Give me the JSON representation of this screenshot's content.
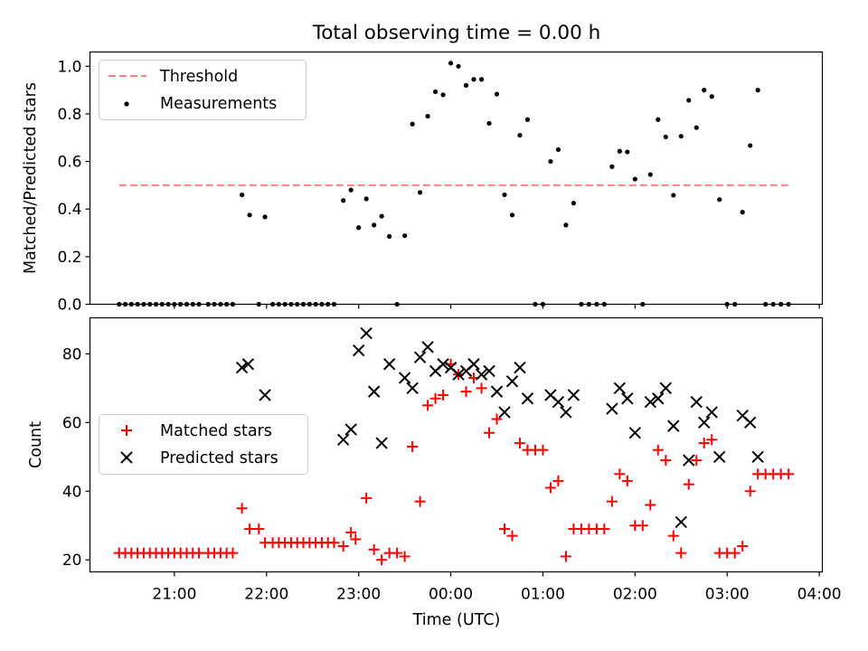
{
  "colors": {
    "threshold": "#ff7f7f",
    "measurement": "#000000",
    "matched": "#ff0000",
    "predicted": "#000000"
  },
  "chart_data": [
    {
      "type": "scatter",
      "title": "Total observing time = 0.00 h",
      "xlabel": "",
      "ylabel": "Matched/Predicted stars",
      "ylim": [
        0,
        1.06
      ],
      "yticks": [
        "0.0",
        "0.2",
        "0.4",
        "0.6",
        "0.8",
        "1.0"
      ],
      "ytick_values": [
        0,
        0.2,
        0.4,
        0.6,
        0.8,
        1.0
      ],
      "legend_location": "upper-left",
      "legend": [
        "Threshold",
        "Measurements"
      ],
      "threshold": {
        "name": "Threshold",
        "y": 0.5,
        "x_start": "20:24",
        "x_end": "03:42"
      },
      "series": [
        {
          "name": "Measurements",
          "points": [
            [
              "20:24",
              0
            ],
            [
              "20:28",
              0
            ],
            [
              "20:32",
              0
            ],
            [
              "20:36",
              0
            ],
            [
              "20:40",
              0
            ],
            [
              "20:44",
              0
            ],
            [
              "20:48",
              0
            ],
            [
              "20:52",
              0
            ],
            [
              "20:56",
              0
            ],
            [
              "21:00",
              0
            ],
            [
              "21:04",
              0
            ],
            [
              "21:08",
              0
            ],
            [
              "21:12",
              0
            ],
            [
              "21:16",
              0
            ],
            [
              "21:22",
              0
            ],
            [
              "21:26",
              0
            ],
            [
              "21:30",
              0
            ],
            [
              "21:34",
              0
            ],
            [
              "21:38",
              0
            ],
            [
              "21:44",
              0.46
            ],
            [
              "21:49",
              0.375
            ],
            [
              "21:55",
              0
            ],
            [
              "21:59",
              0.367
            ],
            [
              "22:04",
              0
            ],
            [
              "22:08",
              0
            ],
            [
              "22:12",
              0
            ],
            [
              "22:16",
              0
            ],
            [
              "22:20",
              0
            ],
            [
              "22:24",
              0
            ],
            [
              "22:28",
              0
            ],
            [
              "22:32",
              0
            ],
            [
              "22:36",
              0
            ],
            [
              "22:40",
              0
            ],
            [
              "22:44",
              0
            ],
            [
              "22:50",
              0.436
            ],
            [
              "22:55",
              0.48
            ],
            [
              "23:00",
              0.322
            ],
            [
              "23:05",
              0.443
            ],
            [
              "23:10",
              0.333
            ],
            [
              "23:15",
              0.37
            ],
            [
              "23:20",
              0.285
            ],
            [
              "23:25",
              0
            ],
            [
              "23:30",
              0.288
            ],
            [
              "23:35",
              0.757
            ],
            [
              "23:40",
              0.47
            ],
            [
              "23:45",
              0.79
            ],
            [
              "23:50",
              0.893
            ],
            [
              "23:55",
              0.88
            ],
            [
              "00:00",
              1.013
            ],
            [
              "00:05",
              1.0
            ],
            [
              "00:10",
              0.92
            ],
            [
              "00:15",
              0.945
            ],
            [
              "00:20",
              0.945
            ],
            [
              "00:25",
              0.76
            ],
            [
              "00:30",
              0.883
            ],
            [
              "00:35",
              0.46
            ],
            [
              "00:40",
              0.375
            ],
            [
              "00:45",
              0.71
            ],
            [
              "00:50",
              0.776
            ],
            [
              "00:55",
              0
            ],
            [
              "01:00",
              0
            ],
            [
              "01:05",
              0.6
            ],
            [
              "01:10",
              0.65
            ],
            [
              "01:15",
              0.333
            ],
            [
              "01:20",
              0.425
            ],
            [
              "01:25",
              0
            ],
            [
              "01:30",
              0
            ],
            [
              "01:35",
              0
            ],
            [
              "01:40",
              0
            ],
            [
              "01:45",
              0.578
            ],
            [
              "01:50",
              0.643
            ],
            [
              "01:55",
              0.64
            ],
            [
              "02:00",
              0.526
            ],
            [
              "02:05",
              0
            ],
            [
              "02:10",
              0.545
            ],
            [
              "02:15",
              0.776
            ],
            [
              "02:20",
              0.703
            ],
            [
              "02:25",
              0.458
            ],
            [
              "02:30",
              0.706
            ],
            [
              "02:35",
              0.857
            ],
            [
              "02:40",
              0.742
            ],
            [
              "02:45",
              0.9
            ],
            [
              "02:50",
              0.873
            ],
            [
              "02:55",
              0.44
            ],
            [
              "03:00",
              0
            ],
            [
              "03:05",
              0
            ],
            [
              "03:10",
              0.387
            ],
            [
              "03:15",
              0.667
            ],
            [
              "03:20",
              0.9
            ],
            [
              "03:25",
              0
            ],
            [
              "03:30",
              0
            ],
            [
              "03:35",
              0
            ],
            [
              "03:40",
              0
            ]
          ]
        }
      ]
    },
    {
      "type": "scatter",
      "title": "",
      "xlabel": "Time (UTC)",
      "ylabel": "Count",
      "ylim": [
        16.5,
        90.5
      ],
      "yticks": [
        "20",
        "40",
        "60",
        "80"
      ],
      "ytick_values": [
        20,
        40,
        60,
        80
      ],
      "xlim": [
        "20:05",
        "04:02"
      ],
      "xticks": [
        "21:00",
        "22:00",
        "23:00",
        "00:00",
        "01:00",
        "02:00",
        "03:00",
        "04:00"
      ],
      "legend_location": "center-left",
      "legend": [
        "Matched stars",
        "Predicted stars"
      ],
      "series": [
        {
          "name": "Matched stars",
          "points": [
            [
              "20:24",
              22
            ],
            [
              "20:28",
              22
            ],
            [
              "20:32",
              22
            ],
            [
              "20:36",
              22
            ],
            [
              "20:40",
              22
            ],
            [
              "20:44",
              22
            ],
            [
              "20:48",
              22
            ],
            [
              "20:52",
              22
            ],
            [
              "20:56",
              22
            ],
            [
              "21:00",
              22
            ],
            [
              "21:04",
              22
            ],
            [
              "21:08",
              22
            ],
            [
              "21:12",
              22
            ],
            [
              "21:16",
              22
            ],
            [
              "21:22",
              22
            ],
            [
              "21:26",
              22
            ],
            [
              "21:30",
              22
            ],
            [
              "21:34",
              22
            ],
            [
              "21:38",
              22
            ],
            [
              "21:44",
              35
            ],
            [
              "21:49",
              29
            ],
            [
              "21:55",
              29
            ],
            [
              "21:59",
              25
            ],
            [
              "22:04",
              25
            ],
            [
              "22:08",
              25
            ],
            [
              "22:12",
              25
            ],
            [
              "22:16",
              25
            ],
            [
              "22:20",
              25
            ],
            [
              "22:24",
              25
            ],
            [
              "22:28",
              25
            ],
            [
              "22:32",
              25
            ],
            [
              "22:36",
              25
            ],
            [
              "22:40",
              25
            ],
            [
              "22:44",
              25
            ],
            [
              "22:50",
              24
            ],
            [
              "22:55",
              28
            ],
            [
              "22:58",
              26
            ],
            [
              "23:05",
              38
            ],
            [
              "23:10",
              23
            ],
            [
              "23:15",
              20
            ],
            [
              "23:20",
              22
            ],
            [
              "23:25",
              22
            ],
            [
              "23:30",
              21
            ],
            [
              "23:35",
              53
            ],
            [
              "23:40",
              37
            ],
            [
              "23:45",
              65
            ],
            [
              "23:50",
              67
            ],
            [
              "23:55",
              68
            ],
            [
              "00:00",
              77
            ],
            [
              "00:05",
              74
            ],
            [
              "00:10",
              69
            ],
            [
              "00:15",
              73
            ],
            [
              "00:20",
              70
            ],
            [
              "00:25",
              57
            ],
            [
              "00:30",
              61
            ],
            [
              "00:35",
              29
            ],
            [
              "00:40",
              27
            ],
            [
              "00:45",
              54
            ],
            [
              "00:50",
              52
            ],
            [
              "00:55",
              52
            ],
            [
              "01:00",
              52
            ],
            [
              "01:05",
              41
            ],
            [
              "01:10",
              43
            ],
            [
              "01:15",
              21
            ],
            [
              "01:20",
              29
            ],
            [
              "01:25",
              29
            ],
            [
              "01:30",
              29
            ],
            [
              "01:35",
              29
            ],
            [
              "01:40",
              29
            ],
            [
              "01:45",
              37
            ],
            [
              "01:50",
              45
            ],
            [
              "01:55",
              43
            ],
            [
              "02:00",
              30
            ],
            [
              "02:05",
              30
            ],
            [
              "02:10",
              36
            ],
            [
              "02:15",
              52
            ],
            [
              "02:20",
              49
            ],
            [
              "02:25",
              27
            ],
            [
              "02:30",
              22
            ],
            [
              "02:35",
              42
            ],
            [
              "02:40",
              49
            ],
            [
              "02:45",
              54
            ],
            [
              "02:50",
              55
            ],
            [
              "02:55",
              22
            ],
            [
              "03:00",
              22
            ],
            [
              "03:05",
              22
            ],
            [
              "03:10",
              24
            ],
            [
              "03:15",
              40
            ],
            [
              "03:20",
              45
            ],
            [
              "03:25",
              45
            ],
            [
              "03:30",
              45
            ],
            [
              "03:35",
              45
            ],
            [
              "03:40",
              45
            ]
          ]
        },
        {
          "name": "Predicted stars",
          "points": [
            [
              "21:44",
              76
            ],
            [
              "21:48",
              77
            ],
            [
              "21:59",
              68
            ],
            [
              "22:50",
              55
            ],
            [
              "22:55",
              58
            ],
            [
              "23:00",
              81
            ],
            [
              "23:05",
              86
            ],
            [
              "23:10",
              69
            ],
            [
              "23:15",
              54
            ],
            [
              "23:20",
              77
            ],
            [
              "23:30",
              73
            ],
            [
              "23:35",
              70
            ],
            [
              "23:40",
              79
            ],
            [
              "23:45",
              82
            ],
            [
              "23:50",
              75
            ],
            [
              "23:55",
              77
            ],
            [
              "00:00",
              76
            ],
            [
              "00:05",
              74
            ],
            [
              "00:10",
              75
            ],
            [
              "00:15",
              77
            ],
            [
              "00:20",
              74
            ],
            [
              "00:25",
              75
            ],
            [
              "00:30",
              69
            ],
            [
              "00:35",
              63
            ],
            [
              "00:40",
              72
            ],
            [
              "00:45",
              76
            ],
            [
              "00:50",
              67
            ],
            [
              "01:05",
              68
            ],
            [
              "01:10",
              66
            ],
            [
              "01:15",
              63
            ],
            [
              "01:20",
              68
            ],
            [
              "01:45",
              64
            ],
            [
              "01:50",
              70
            ],
            [
              "01:55",
              67
            ],
            [
              "02:00",
              57
            ],
            [
              "02:10",
              66
            ],
            [
              "02:15",
              67
            ],
            [
              "02:20",
              70
            ],
            [
              "02:25",
              59
            ],
            [
              "02:30",
              31
            ],
            [
              "02:35",
              49
            ],
            [
              "02:40",
              66
            ],
            [
              "02:45",
              60
            ],
            [
              "02:50",
              63
            ],
            [
              "02:55",
              50
            ],
            [
              "03:10",
              62
            ],
            [
              "03:15",
              60
            ],
            [
              "03:20",
              50
            ]
          ]
        }
      ]
    }
  ]
}
